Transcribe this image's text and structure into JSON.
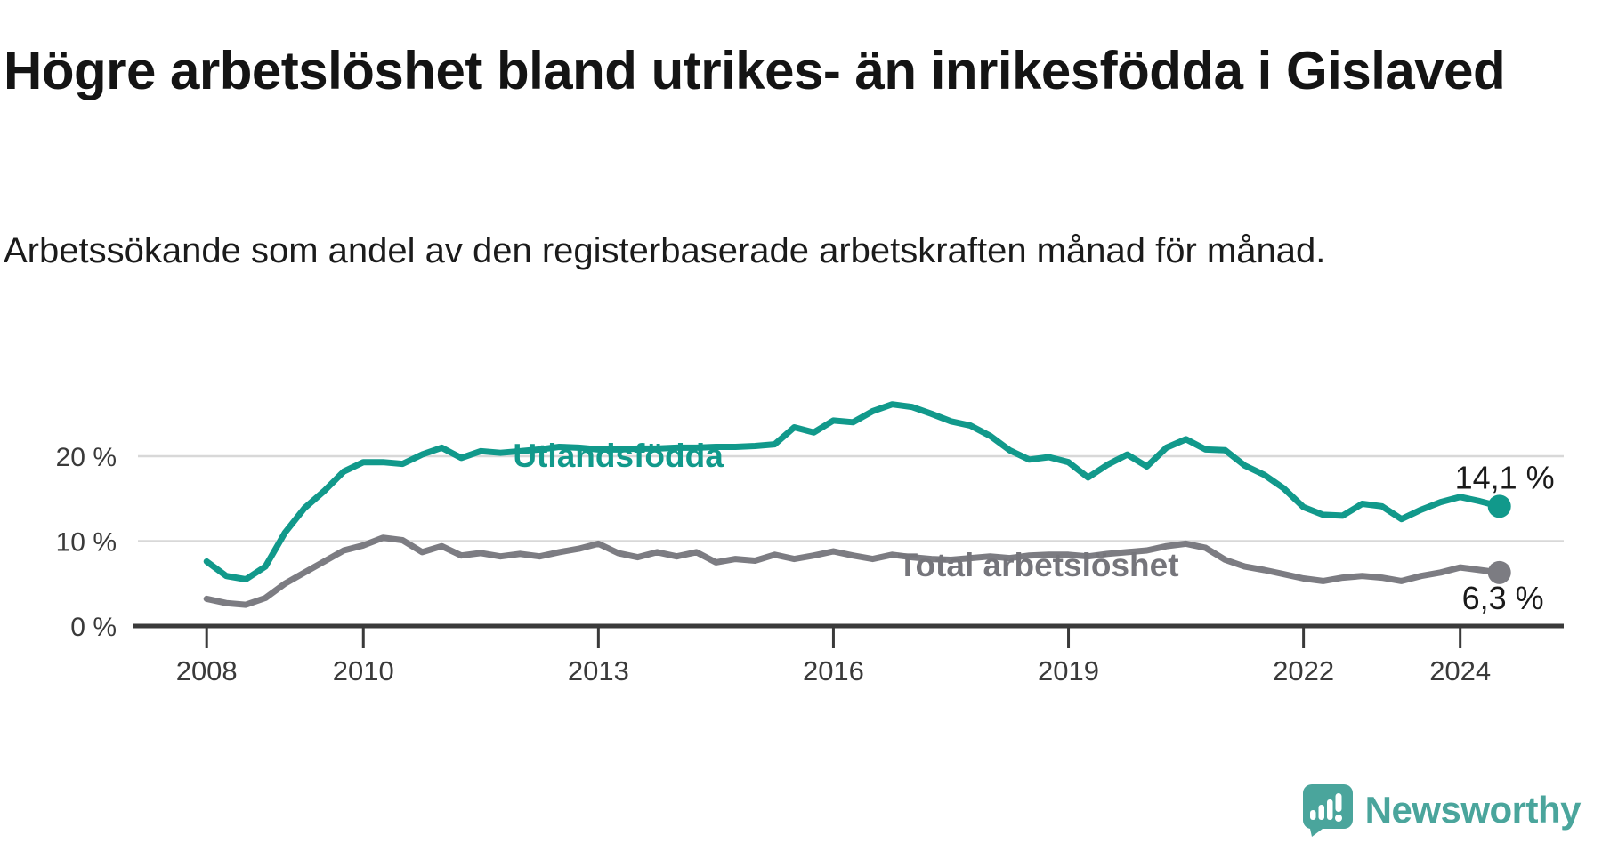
{
  "title": "Högre arbetslöshet bland utrikes- än inrikesfödda i Gislaved",
  "subtitle": "Arbetssökande som andel av den registerbaserade arbetskraften månad för månad.",
  "colors": {
    "foreign_line": "#11998b",
    "total_line": "#7c7c82",
    "total_label": "#75757b",
    "axis_text": "#3a3a3a",
    "gridline": "#d8d8d8",
    "axis_line": "#3a3a3a",
    "value_label": "#1a1a1a",
    "logo": "#4aa59c"
  },
  "chart_data": {
    "type": "line",
    "unit": "%",
    "grid": "horizontal",
    "x_range": [
      2008,
      2024.6
    ],
    "ylim": [
      0,
      27.5
    ],
    "y_ticks": [
      0,
      10,
      20
    ],
    "y_tick_labels": [
      "0 %",
      "10 %",
      "20 %"
    ],
    "x_ticks": [
      2008,
      2010,
      2013,
      2016,
      2019,
      2022,
      2024
    ],
    "x_tick_labels": [
      "2008",
      "2010",
      "2013",
      "2016",
      "2019",
      "2022",
      "2024"
    ],
    "x": [
      2008,
      2008.25,
      2008.5,
      2008.75,
      2009,
      2009.25,
      2009.5,
      2009.75,
      2010,
      2010.25,
      2010.5,
      2010.75,
      2011,
      2011.25,
      2011.5,
      2011.75,
      2012,
      2012.25,
      2012.5,
      2012.75,
      2013,
      2013.25,
      2013.5,
      2013.75,
      2014,
      2014.25,
      2014.5,
      2014.75,
      2015,
      2015.25,
      2015.5,
      2015.75,
      2016,
      2016.25,
      2016.5,
      2016.75,
      2017,
      2017.25,
      2017.5,
      2017.75,
      2018,
      2018.25,
      2018.5,
      2018.75,
      2019,
      2019.25,
      2019.5,
      2019.75,
      2020,
      2020.25,
      2020.5,
      2020.75,
      2021,
      2021.25,
      2021.5,
      2021.75,
      2022,
      2022.25,
      2022.5,
      2022.75,
      2023,
      2023.25,
      2023.5,
      2023.75,
      2024,
      2024.25,
      2024.5
    ],
    "series": [
      {
        "name": "Utlandsfödda",
        "color": "#11998b",
        "label_x": 2011.91,
        "label_y": 20.1,
        "end_label": "14,1 %",
        "end_value": 14.1,
        "values": [
          7.6,
          5.9,
          5.5,
          7.0,
          11.0,
          13.9,
          15.9,
          18.2,
          19.3,
          19.3,
          19.1,
          20.2,
          21.0,
          19.8,
          20.6,
          20.4,
          20.6,
          20.8,
          21.1,
          21.0,
          20.8,
          20.8,
          20.9,
          20.9,
          21.0,
          21.0,
          21.1,
          21.1,
          21.2,
          21.4,
          23.4,
          22.8,
          24.2,
          24.0,
          25.3,
          26.1,
          25.8,
          25.0,
          24.1,
          23.6,
          22.4,
          20.7,
          19.6,
          19.9,
          19.3,
          17.5,
          19.0,
          20.2,
          18.8,
          21.0,
          22.0,
          20.8,
          20.7,
          18.9,
          17.8,
          16.2,
          14.0,
          13.1,
          13.0,
          14.4,
          14.1,
          12.6,
          13.7,
          14.6,
          15.2,
          14.7,
          14.1
        ]
      },
      {
        "name": "Total arbetslöshet",
        "color": "#7c7c82",
        "label_color": "#75757b",
        "label_x": 2016.82,
        "label_y": 7.2,
        "end_label": "6,3 %",
        "end_value": 6.3,
        "values": [
          3.2,
          2.7,
          2.5,
          3.3,
          5.0,
          6.3,
          7.6,
          8.9,
          9.5,
          10.4,
          10.1,
          8.7,
          9.4,
          8.3,
          8.6,
          8.2,
          8.5,
          8.2,
          8.7,
          9.1,
          9.7,
          8.6,
          8.1,
          8.7,
          8.2,
          8.7,
          7.5,
          7.9,
          7.7,
          8.4,
          7.9,
          8.3,
          8.8,
          8.3,
          7.9,
          8.4,
          8.1,
          7.9,
          7.8,
          8.0,
          8.2,
          8.0,
          8.3,
          8.4,
          8.4,
          8.2,
          8.5,
          8.7,
          8.9,
          9.4,
          9.7,
          9.2,
          7.8,
          7.0,
          6.6,
          6.1,
          5.6,
          5.3,
          5.7,
          5.9,
          5.7,
          5.3,
          5.9,
          6.3,
          6.9,
          6.6,
          6.3
        ]
      }
    ]
  },
  "logo": {
    "text": "Newsworthy"
  }
}
